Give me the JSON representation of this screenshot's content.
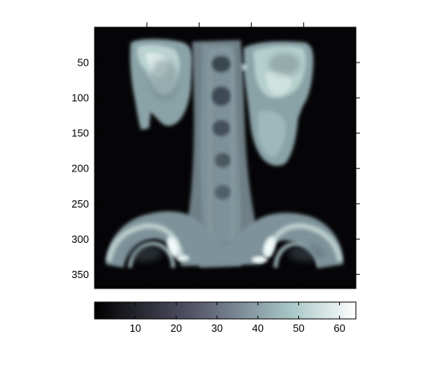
{
  "image": {
    "subject": "volume-rendered CT scan",
    "colormap": "bone",
    "y_axis": {
      "ticks": [
        {
          "value": 50,
          "label": "50"
        },
        {
          "value": 100,
          "label": "100"
        },
        {
          "value": 150,
          "label": "150"
        },
        {
          "value": 200,
          "label": "200"
        },
        {
          "value": 250,
          "label": "250"
        },
        {
          "value": 300,
          "label": "300"
        },
        {
          "value": 350,
          "label": "350"
        }
      ],
      "range": [
        0,
        370
      ]
    },
    "x_axis": {
      "tick_count": 4,
      "labels_shown": false
    }
  },
  "colorbar": {
    "range": [
      0,
      64
    ],
    "ticks": [
      {
        "value": 10,
        "label": "10"
      },
      {
        "value": 20,
        "label": "20"
      },
      {
        "value": 30,
        "label": "30"
      },
      {
        "value": 40,
        "label": "40"
      },
      {
        "value": 50,
        "label": "50"
      },
      {
        "value": 60,
        "label": "60"
      }
    ],
    "colors": [
      "#000000",
      "#2f2f3f",
      "#5b5d78",
      "#7f93a0",
      "#a7c6c6",
      "#ffffff"
    ]
  }
}
